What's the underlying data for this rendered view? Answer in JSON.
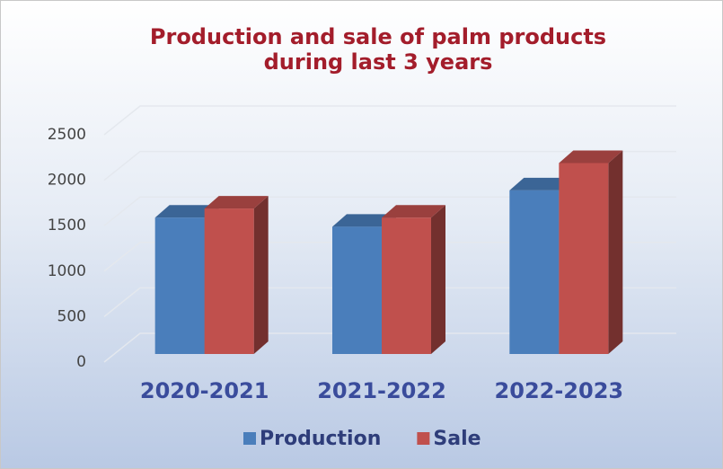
{
  "chart_data": {
    "type": "bar3d",
    "title": "Production and sale of palm products during last 3 years",
    "categories": [
      "2020-2021",
      "2021-2022",
      "2022-2023"
    ],
    "series": [
      {
        "name": "Production",
        "color": "#4a7ebb",
        "values": [
          1500,
          1400,
          1800
        ]
      },
      {
        "name": "Sale",
        "color": "#c0504d",
        "values": [
          1600,
          1500,
          2100
        ]
      }
    ],
    "ylim": [
      0,
      2500
    ],
    "yticks": [
      0,
      500,
      1000,
      1500,
      2000,
      2500
    ],
    "grid": true,
    "legend": "bottom"
  }
}
